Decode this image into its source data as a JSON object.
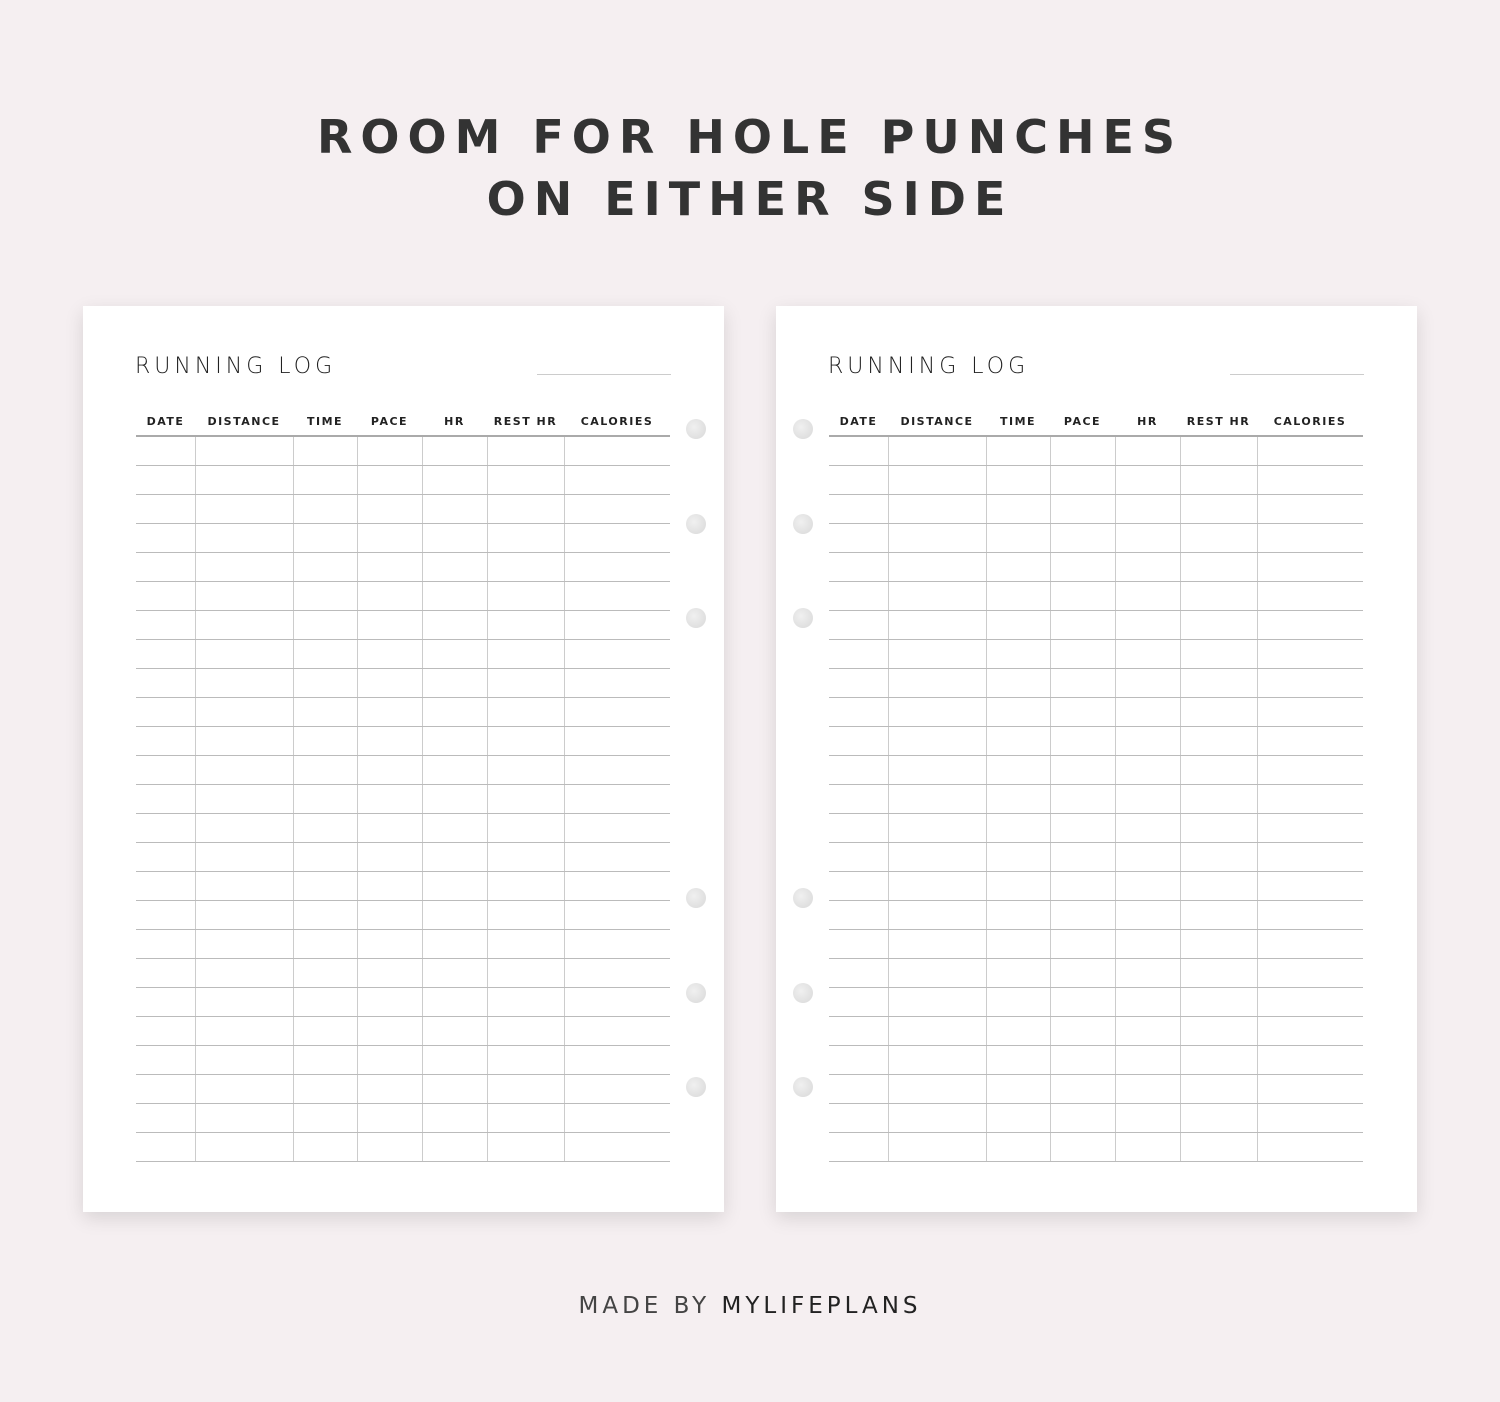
{
  "headline": {
    "line1": "ROOM FOR HOLE PUNCHES",
    "line2": "ON EITHER SIDE"
  },
  "pages": [
    {
      "title": "RUNNING LOG",
      "columns": [
        "DATE",
        "DISTANCE",
        "TIME",
        "PACE",
        "HR",
        "REST HR",
        "CALORIES"
      ],
      "row_count": 25,
      "holes_side": "right"
    },
    {
      "title": "RUNNING LOG",
      "columns": [
        "DATE",
        "DISTANCE",
        "TIME",
        "PACE",
        "HR",
        "REST HR",
        "CALORIES"
      ],
      "row_count": 25,
      "holes_side": "left"
    }
  ],
  "footer": {
    "prefix": "MADE BY",
    "brand": "MYLIFEPLANS"
  },
  "colors": {
    "background": "#f5eff1",
    "text": "#333333"
  }
}
